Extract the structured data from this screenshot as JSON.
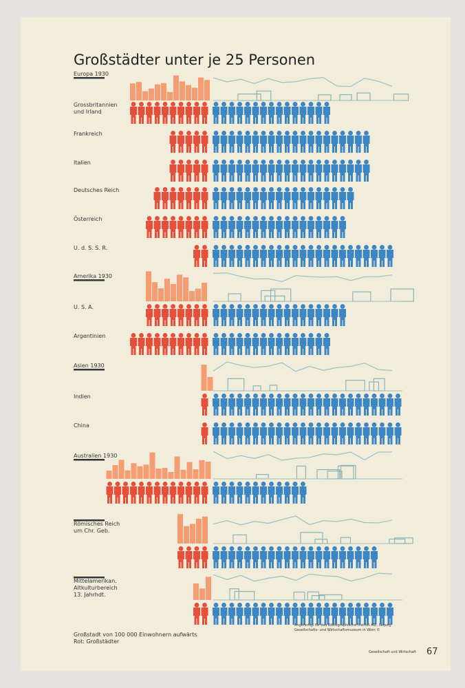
{
  "chart_data": {
    "type": "pictogram",
    "title": "Großstädter unter je 25 Personen",
    "sections": [
      "Europa 1930",
      "Amerika 1930",
      "Asien 1930",
      "Australien 1930"
    ],
    "categories": [
      "Grossbritannien\nund Irland",
      "Frankreich",
      "Italien",
      "Deutsches Reich",
      "Österreich",
      "U. d. S. S. R.",
      "U. S. A.",
      "Argentinien",
      "Indien",
      "China",
      "",
      "Römisches Reich\num Chr. Geb.",
      "Mittelamerikan.\nAltkulturbereich\n13. Jahrhdt."
    ],
    "series": [
      {
        "name": "Rot: Großstädter",
        "color": "#e4503b",
        "values": [
          10,
          5,
          5,
          7,
          8,
          2,
          8,
          10,
          1,
          1,
          13,
          4,
          2
        ]
      },
      {
        "color": "#3d86c4",
        "values": [
          15,
          20,
          20,
          18,
          17,
          23,
          17,
          15,
          24,
          24,
          12,
          21,
          23
        ]
      }
    ],
    "note": "Großstadt von 100 000 Einwohnern aufwärts",
    "credit": "Angefertigt für das Bibliographische Institut AG., Leipzig\nGesellschafts- und Wirtschaftsmuseum in Wien ©",
    "series_title": "Gesellschaft und Wirtschaft",
    "page_number": "67"
  }
}
